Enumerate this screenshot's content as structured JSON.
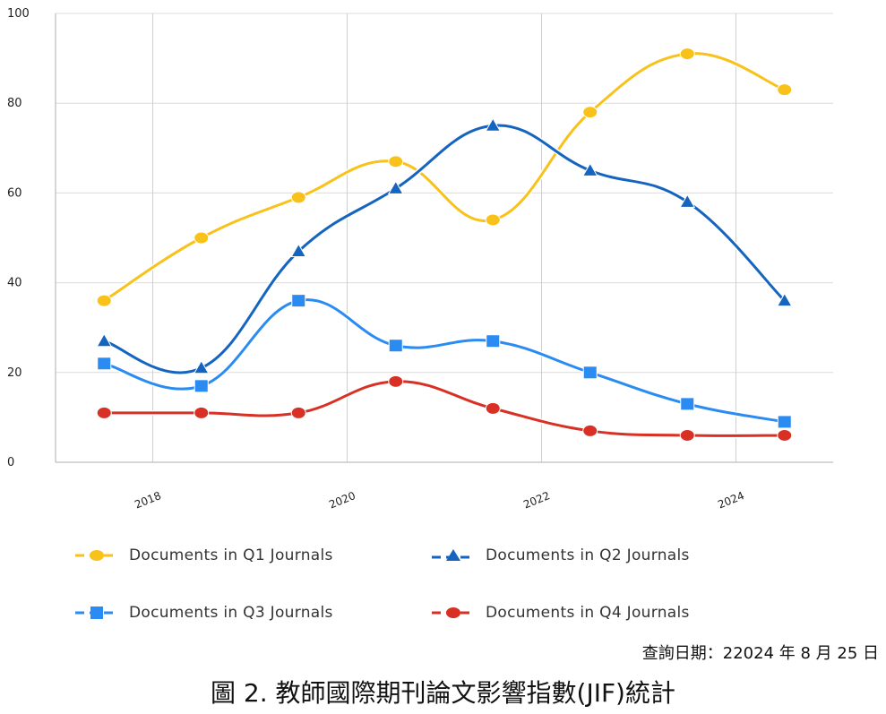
{
  "chart_data": {
    "type": "line",
    "title": "",
    "xlabel": "",
    "ylabel": "",
    "x": [
      2017.5,
      2018.5,
      2019.5,
      2020.5,
      2021.5,
      2022.5,
      2023.5,
      2024.5
    ],
    "x_ticks": [
      "2018",
      "2020",
      "2022",
      "2024"
    ],
    "y_ticks": [
      "0",
      "20",
      "40",
      "60",
      "80",
      "100"
    ],
    "ylim": [
      0,
      100
    ],
    "grid": true,
    "series": [
      {
        "name": "Documents in Q1 Journals",
        "color": "#F9C21A",
        "marker": "circle",
        "values": [
          36,
          50,
          59,
          67,
          54,
          78,
          91,
          83
        ]
      },
      {
        "name": "Documents in Q2 Journals",
        "color": "#1565C0",
        "marker": "triangle",
        "values": [
          27,
          21,
          47,
          61,
          75,
          65,
          58,
          36
        ]
      },
      {
        "name": "Documents in Q3 Journals",
        "color": "#2A8BF2",
        "marker": "square",
        "values": [
          22,
          17,
          36,
          26,
          27,
          20,
          13,
          9
        ]
      },
      {
        "name": "Documents in Q4 Journals",
        "color": "#D93025",
        "marker": "circle",
        "values": [
          11,
          11,
          11,
          18,
          12,
          7,
          6,
          6
        ]
      }
    ]
  },
  "footer": {
    "query_date": "查詢日期：22024 年 8 月 25 日",
    "caption": "圖 2.  教師國際期刊論文影響指數(JIF)統計"
  }
}
